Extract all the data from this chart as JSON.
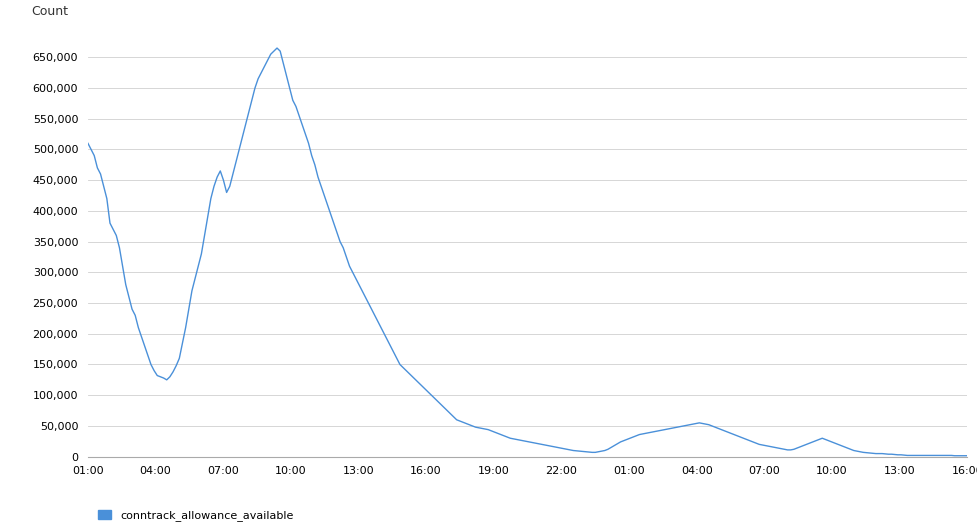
{
  "ylabel": "Count",
  "line_color": "#4a90d9",
  "background_color": "#ffffff",
  "grid_color": "#d0d0d0",
  "legend_label": "conntrack_allowance_available",
  "ylim": [
    0,
    700000
  ],
  "yticks": [
    0,
    50000,
    100000,
    150000,
    200000,
    250000,
    300000,
    350000,
    400000,
    450000,
    500000,
    550000,
    600000,
    650000
  ],
  "xtick_labels": [
    "01:00",
    "04:00",
    "07:00",
    "10:00",
    "13:00",
    "16:00",
    "19:00",
    "22:00",
    "01:00",
    "04:00",
    "07:00",
    "10:00",
    "13:00",
    "16:00"
  ],
  "y_values": [
    510000,
    500000,
    490000,
    470000,
    460000,
    440000,
    420000,
    380000,
    370000,
    360000,
    340000,
    310000,
    280000,
    260000,
    240000,
    230000,
    210000,
    195000,
    180000,
    165000,
    150000,
    140000,
    132000,
    130000,
    128000,
    125000,
    130000,
    138000,
    148000,
    160000,
    185000,
    210000,
    240000,
    270000,
    290000,
    310000,
    330000,
    360000,
    390000,
    420000,
    440000,
    455000,
    465000,
    450000,
    430000,
    440000,
    460000,
    480000,
    500000,
    520000,
    540000,
    560000,
    580000,
    600000,
    615000,
    625000,
    635000,
    645000,
    655000,
    660000,
    665000,
    660000,
    640000,
    620000,
    600000,
    580000,
    570000,
    555000,
    540000,
    525000,
    510000,
    490000,
    475000,
    455000,
    440000,
    425000,
    410000,
    395000,
    380000,
    365000,
    350000,
    340000,
    325000,
    310000,
    300000,
    290000,
    280000,
    270000,
    260000,
    250000,
    240000,
    230000,
    220000,
    210000,
    200000,
    190000,
    180000,
    170000,
    160000,
    150000,
    145000,
    140000,
    135000,
    130000,
    125000,
    120000,
    115000,
    110000,
    105000,
    100000,
    95000,
    90000,
    85000,
    80000,
    75000,
    70000,
    65000,
    60000,
    58000,
    56000,
    54000,
    52000,
    50000,
    48000,
    47000,
    46000,
    45000,
    44000,
    42000,
    40000,
    38000,
    36000,
    34000,
    32000,
    30000,
    29000,
    28000,
    27000,
    26000,
    25000,
    24000,
    23000,
    22000,
    21000,
    20000,
    19000,
    18000,
    17000,
    16000,
    15000,
    14000,
    13000,
    12000,
    11000,
    10000,
    9500,
    9000,
    8500,
    8000,
    7500,
    7000,
    7000,
    8000,
    9000,
    10000,
    12000,
    15000,
    18000,
    21000,
    24000,
    26000,
    28000,
    30000,
    32000,
    34000,
    36000,
    37000,
    38000,
    39000,
    40000,
    41000,
    42000,
    43000,
    44000,
    45000,
    46000,
    47000,
    48000,
    49000,
    50000,
    51000,
    52000,
    53000,
    54000,
    55000,
    54000,
    53000,
    52000,
    50000,
    48000,
    46000,
    44000,
    42000,
    40000,
    38000,
    36000,
    34000,
    32000,
    30000,
    28000,
    26000,
    24000,
    22000,
    20000,
    19000,
    18000,
    17000,
    16000,
    15000,
    14000,
    13000,
    12000,
    11000,
    11000,
    12000,
    14000,
    16000,
    18000,
    20000,
    22000,
    24000,
    26000,
    28000,
    30000,
    28000,
    26000,
    24000,
    22000,
    20000,
    18000,
    16000,
    14000,
    12000,
    10000,
    9000,
    8000,
    7000,
    6500,
    6000,
    5500,
    5000,
    5000,
    5000,
    4500,
    4000,
    4000,
    3500,
    3000,
    3000,
    2500,
    2000,
    2000,
    2000,
    2000,
    2000,
    2000,
    2000,
    2000,
    2000,
    2000,
    2000,
    2000,
    2000,
    2000,
    2000,
    1500,
    1500,
    1500,
    1500,
    1500
  ]
}
